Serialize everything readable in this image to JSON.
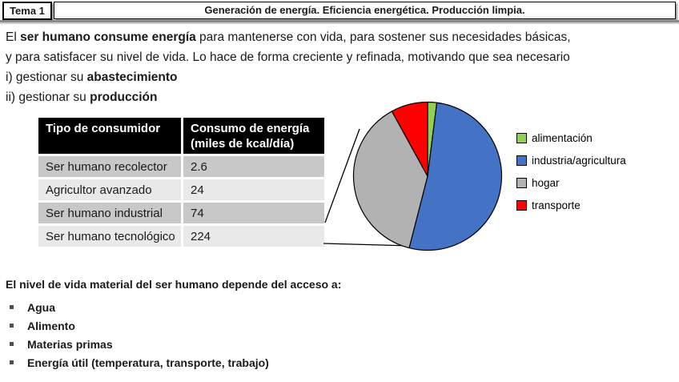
{
  "header": {
    "tag": "Tema 1",
    "title": "Generación de energía. Eficiencia energética. Producción limpia."
  },
  "intro": {
    "line1_pre": "El ",
    "line1_bold": "ser humano consume energía",
    "line1_post": " para mantenerse con vida, para sostener sus necesidades básicas,",
    "line2": "y para satisfacer su nivel de vida. Lo hace de forma creciente y refinada, motivando que sea necesario",
    "item1_pre": "i) gestionar su ",
    "item1_bold": "abastecimiento",
    "item2_pre": "ii) gestionar su ",
    "item2_bold": "producción"
  },
  "table": {
    "headers": [
      "Tipo de consumidor",
      "Consumo de energía (miles de kcal/día)"
    ],
    "rows": [
      {
        "type": "Ser humano recolector",
        "value": "2.6"
      },
      {
        "type": "Agricultor avanzado",
        "value": "24"
      },
      {
        "type": "Ser humano industrial",
        "value": "74"
      },
      {
        "type": "Ser humano tecnológico",
        "value": "224"
      }
    ]
  },
  "chart_data": {
    "type": "pie",
    "labels": [
      "alimentación",
      "industria/agricultura",
      "hogar",
      "transporte"
    ],
    "values": [
      2,
      52,
      38,
      8
    ],
    "unit": "percent (estimated from slice angles)",
    "colors": [
      "#92d050",
      "#4472c4",
      "#b2b2b2",
      "#ff0000"
    ],
    "outline_color": "#000000",
    "start_angle_deg": 0,
    "direction": "clockwise",
    "legend_position": "right",
    "title": ""
  },
  "access": {
    "heading": "El nivel de vida material del ser humano depende del acceso a:",
    "items": [
      "Agua",
      "Alimento",
      "Materias primas",
      "Energía útil (temperatura, transporte, trabajo)"
    ]
  },
  "colors": {
    "table_header_bg": "#000000",
    "table_row_dark": "#c8c8c8",
    "table_row_light": "#e9e9e9"
  }
}
